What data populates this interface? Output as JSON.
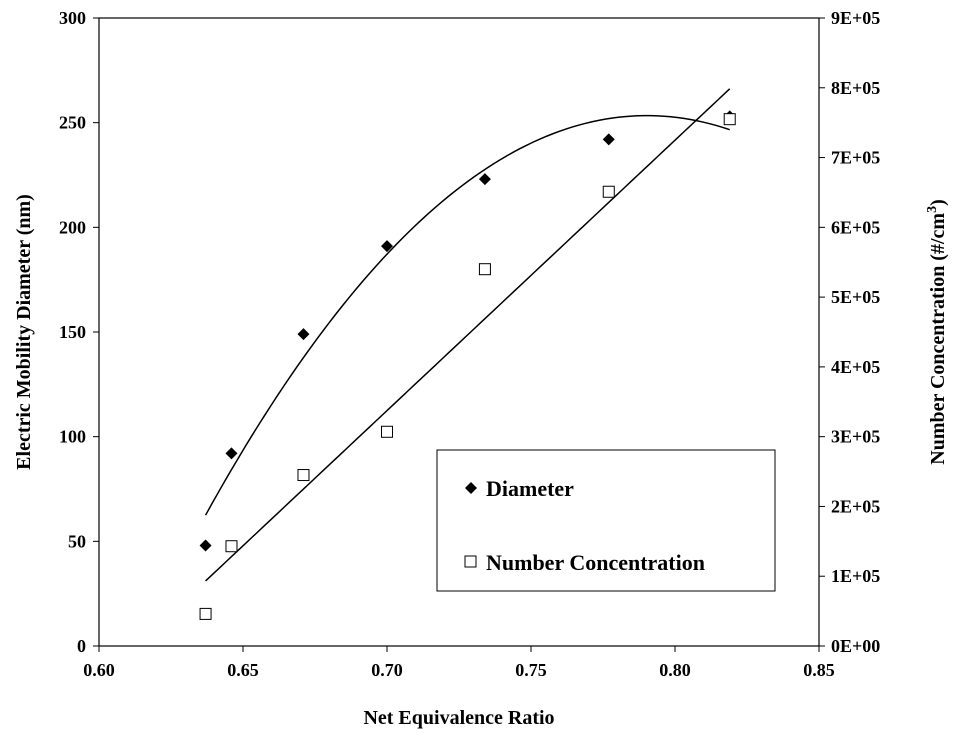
{
  "chart_data": {
    "type": "scatter",
    "title": "",
    "xlabel": "Net Equivalence Ratio",
    "ylabel": "Electric Mobility Diameter (nm)",
    "ylabel_right_main": "Number Concentration (#/cm",
    "ylabel_right_sup": "3",
    "ylabel_right_end": ")",
    "xlim": [
      0.6,
      0.85
    ],
    "ylim": [
      0,
      300
    ],
    "y2lim": [
      0,
      900000
    ],
    "x_ticks": [
      "0.60",
      "0.65",
      "0.70",
      "0.75",
      "0.80",
      "0.85"
    ],
    "y_ticks": [
      "0",
      "50",
      "100",
      "150",
      "200",
      "250",
      "300"
    ],
    "y2_ticks": [
      "0E+00",
      "1E+05",
      "2E+05",
      "3E+05",
      "4E+05",
      "5E+05",
      "6E+05",
      "7E+05",
      "8E+05",
      "9E+05"
    ],
    "legend_position": "bottom-right",
    "grid": false,
    "series": [
      {
        "name": "Diameter",
        "axis": "left",
        "marker": "diamond-filled",
        "x": [
          0.637,
          0.646,
          0.671,
          0.7,
          0.734,
          0.777,
          0.819
        ],
        "y": [
          48,
          92,
          149,
          191,
          223,
          242,
          253
        ],
        "trendline": {
          "type": "poly2",
          "x_range": [
            0.637,
            0.819
          ]
        }
      },
      {
        "name": "Number Concentration",
        "axis": "right",
        "marker": "square-open",
        "x": [
          0.637,
          0.646,
          0.671,
          0.7,
          0.734,
          0.777,
          0.819
        ],
        "y": [
          46000,
          143000,
          245000,
          307000,
          540000,
          651000,
          755000
        ],
        "trendline": {
          "type": "linear",
          "x_range": [
            0.637,
            0.819
          ]
        }
      }
    ]
  }
}
